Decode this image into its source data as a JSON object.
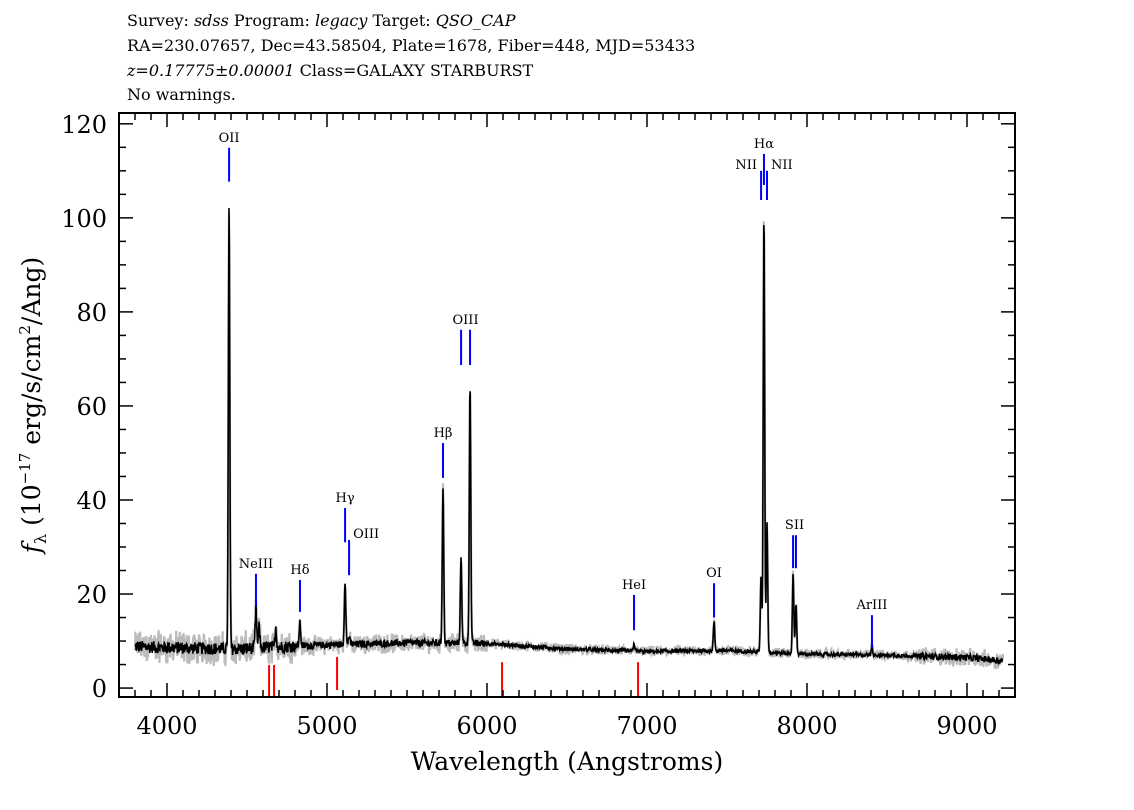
{
  "header": {
    "line1": {
      "survey_label": "Survey: ",
      "survey": "sdss",
      "program_label": " Program: ",
      "program": "legacy",
      "target_label": " Target: ",
      "target": "QSO_CAP"
    },
    "line2": "RA=230.07657, Dec=43.58504, Plate=1678, Fiber=448, MJD=53433",
    "line3": {
      "redshift": "z=0.17775±0.00001",
      "class": " Class=GALAXY STARBURST"
    },
    "line4": "No warnings."
  },
  "chart_data": {
    "type": "line",
    "xlabel": "Wavelength (Angstroms)",
    "ylabel": {
      "prefix": "f",
      "subscript": "λ",
      "text1": " (10",
      "exp1": "−17",
      "text2": " erg/s/cm",
      "exp2": "2",
      "text3": "/Ang)"
    },
    "xlim": [
      3700,
      9300
    ],
    "ylim": [
      -1.9,
      122.3
    ],
    "xticks": [
      4000,
      5000,
      6000,
      7000,
      8000,
      9000
    ],
    "yticks": [
      0,
      20,
      40,
      60,
      80,
      100,
      120
    ],
    "x_minor_step": 100,
    "y_minor_step": 5,
    "wavelength_range": [
      3800,
      9225
    ],
    "continuum": [
      [
        3800,
        8.8
      ],
      [
        4400,
        8.3
      ],
      [
        5000,
        9.2
      ],
      [
        5500,
        9.6
      ],
      [
        6000,
        9.5
      ],
      [
        6500,
        8.3
      ],
      [
        7000,
        7.8
      ],
      [
        7500,
        8.0
      ],
      [
        8000,
        7.2
      ],
      [
        8500,
        7.0
      ],
      [
        9000,
        6.5
      ],
      [
        9225,
        5.8
      ]
    ],
    "emission_peaks": [
      {
        "x": 4388,
        "y": 102
      },
      {
        "x": 4556,
        "y": 17
      },
      {
        "x": 4576,
        "y": 13
      },
      {
        "x": 4680,
        "y": 13
      },
      {
        "x": 4831,
        "y": 14
      },
      {
        "x": 5113,
        "y": 23
      },
      {
        "x": 5138,
        "y": 11
      },
      {
        "x": 5725,
        "y": 43
      },
      {
        "x": 5838,
        "y": 28
      },
      {
        "x": 5894,
        "y": 65
      },
      {
        "x": 6919,
        "y": 9.5
      },
      {
        "x": 7419,
        "y": 14
      },
      {
        "x": 7713,
        "y": 24
      },
      {
        "x": 7731,
        "y": 101
      },
      {
        "x": 7750,
        "y": 35
      },
      {
        "x": 7913,
        "y": 24
      },
      {
        "x": 7931,
        "y": 18
      },
      {
        "x": 8406,
        "y": 9
      }
    ],
    "line_markers": [
      {
        "label": "OII",
        "x": [
          4388
        ],
        "y": [
          107.7,
          114.9
        ],
        "align": "center"
      },
      {
        "label": "NeIII",
        "x": [
          4556
        ],
        "y": [
          17.4,
          24.3
        ],
        "align": "center"
      },
      {
        "label": "Hδ",
        "x": [
          4831
        ],
        "y": [
          16.2,
          23.0
        ],
        "align": "center"
      },
      {
        "label": "Hγ",
        "x": [
          5113
        ],
        "y": [
          31.0,
          38.3
        ],
        "align": "center"
      },
      {
        "label": "OIII",
        "x": [
          5138
        ],
        "y": [
          24.0,
          31.5
        ],
        "align": "right"
      },
      {
        "label": "Hβ",
        "x": [
          5725
        ],
        "y": [
          44.7,
          52.1
        ],
        "align": "center"
      },
      {
        "label": "OIII",
        "x": [
          5838,
          5894
        ],
        "y": [
          68.7,
          76.2
        ],
        "align": "center"
      },
      {
        "label": "HeI",
        "x": [
          6919
        ],
        "y": [
          12.3,
          19.8
        ],
        "align": "center"
      },
      {
        "label": "OI",
        "x": [
          7419
        ],
        "y": [
          15.0,
          22.3
        ],
        "align": "center"
      },
      {
        "label": "NII",
        "x": [
          7713
        ],
        "y": [
          103.8,
          110.0
        ],
        "align": "left"
      },
      {
        "label": "Hα",
        "x": [
          7731
        ],
        "y": [
          107.0,
          113.6
        ],
        "align": "center"
      },
      {
        "label": "NII",
        "x": [
          7750
        ],
        "y": [
          103.8,
          110.0
        ],
        "align": "right"
      },
      {
        "label": "SII",
        "x": [
          7913,
          7931
        ],
        "y": [
          25.5,
          32.5
        ],
        "align": "center"
      },
      {
        "label": "ArIII",
        "x": [
          8406
        ],
        "y": [
          8.5,
          15.5
        ],
        "align": "center"
      }
    ],
    "absorption_markers": [
      {
        "x": 4638,
        "y": [
          -1.9,
          4.9
        ]
      },
      {
        "x": 4669,
        "y": [
          -1.9,
          4.9
        ]
      },
      {
        "x": 5063,
        "y": [
          -0.4,
          6.6
        ]
      },
      {
        "x": 6094,
        "y": [
          -1.9,
          5.5
        ]
      },
      {
        "x": 6944,
        "y": [
          -1.9,
          5.5
        ]
      }
    ],
    "colors": {
      "spectrum": "#000000",
      "error": "#bbbbbb",
      "emission_marker": "#0000ff",
      "absorption_marker": "#ff0000"
    }
  }
}
